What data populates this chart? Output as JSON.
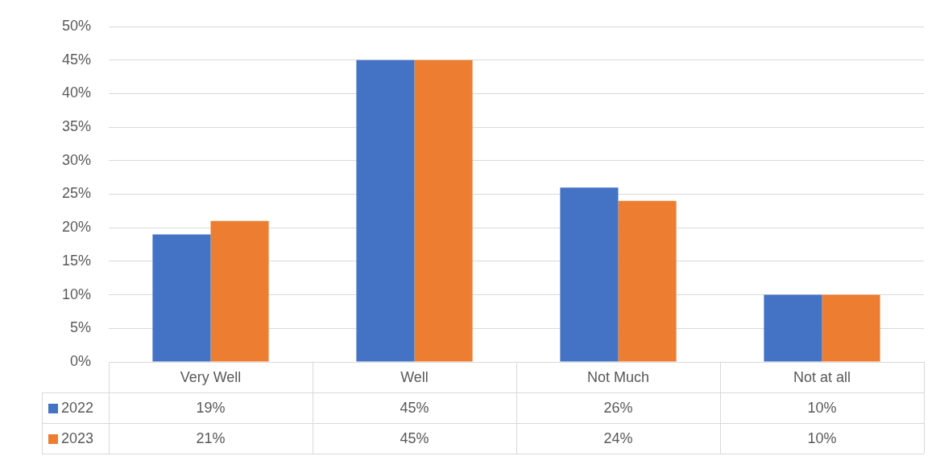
{
  "chart_data": {
    "type": "bar",
    "categories": [
      "Very Well",
      "Well",
      "Not Much",
      "Not at all"
    ],
    "series": [
      {
        "name": "2022",
        "color": "#4472c4",
        "values": [
          19,
          45,
          26,
          10
        ],
        "value_labels": [
          "19%",
          "45%",
          "26%",
          "10%"
        ]
      },
      {
        "name": "2023",
        "color": "#ed7d31",
        "values": [
          21,
          45,
          24,
          10
        ],
        "value_labels": [
          "21%",
          "45%",
          "24%",
          "10%"
        ]
      }
    ],
    "ylim": [
      0,
      50
    ],
    "yticks": [
      {
        "value": 0,
        "label": "0%"
      },
      {
        "value": 5,
        "label": "5%"
      },
      {
        "value": 10,
        "label": "10%"
      },
      {
        "value": 15,
        "label": "15%"
      },
      {
        "value": 20,
        "label": "20%"
      },
      {
        "value": 25,
        "label": "25%"
      },
      {
        "value": 30,
        "label": "30%"
      },
      {
        "value": 35,
        "label": "35%"
      },
      {
        "value": 40,
        "label": "40%"
      },
      {
        "value": 45,
        "label": "45%"
      },
      {
        "value": 50,
        "label": "50%"
      }
    ],
    "grid": "y",
    "legend": "bottom"
  }
}
